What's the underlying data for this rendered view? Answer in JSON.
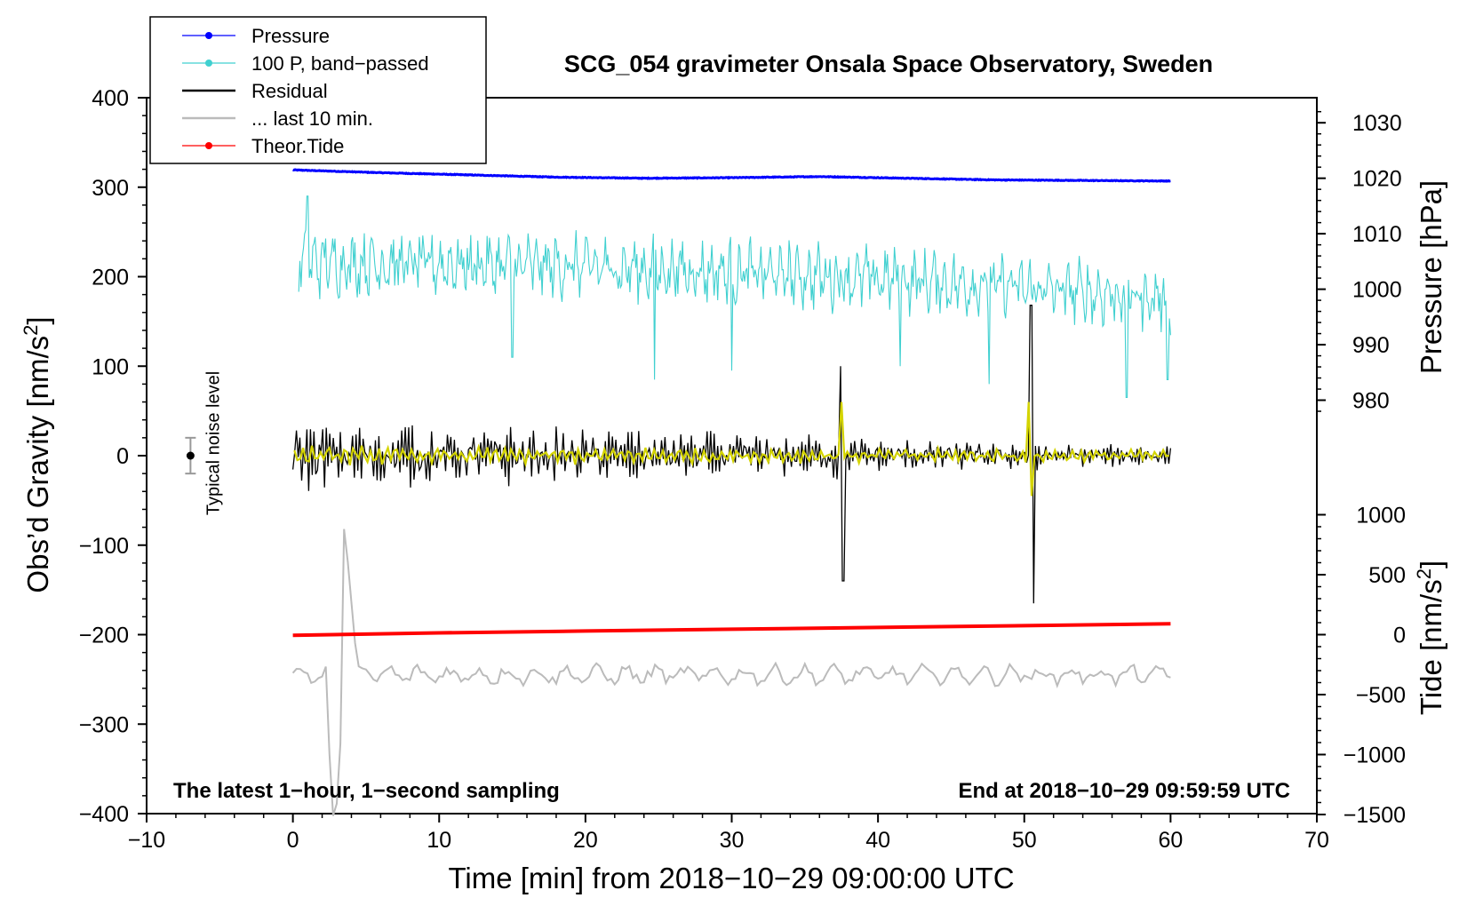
{
  "chart_data": {
    "type": "line",
    "title": "SCG_054 gravimeter Onsala Space Observatory, Sweden",
    "xlabel": "Time [min] from 2018−10−29 09:00:00 UTC",
    "ylabel": "Obs’d Gravity [nm/s²]",
    "ylabel_parts": {
      "base": "Obs’d Gravity [nm/s",
      "sup": "2",
      "close": "]"
    },
    "y2label_pressure": "Pressure [hPa]",
    "y2label_tide": "Tide [nm/s²]",
    "y2label_tide_parts": {
      "base": "Tide [nm/s",
      "sup": "2",
      "close": "]"
    },
    "xlim": [
      -10,
      70
    ],
    "ylim": [
      -400,
      400
    ],
    "xticks": [
      -10,
      0,
      10,
      20,
      30,
      40,
      50,
      60,
      70
    ],
    "xtick_labels": [
      "−10",
      "0",
      "10",
      "20",
      "30",
      "40",
      "50",
      "60",
      "70"
    ],
    "yticks": [
      -400,
      -300,
      -200,
      -100,
      0,
      100,
      200,
      300,
      400
    ],
    "ytick_labels": [
      "−400",
      "−300",
      "−200",
      "−100",
      "0",
      "100",
      "200",
      "300",
      "400"
    ],
    "pressure_axis": {
      "ticks": [
        980,
        990,
        1000,
        1010,
        1020,
        1030
      ],
      "tick_labels": [
        "980",
        "990",
        "1000",
        "1010",
        "1020",
        "1030"
      ],
      "gravity_at_1000hPa": 186,
      "gravity_per_hPa": 6.2
    },
    "tide_axis": {
      "ticks": [
        -1500,
        -1000,
        -500,
        0,
        500,
        1000
      ],
      "tick_labels": [
        "−1500",
        "−1000",
        "−500",
        "0",
        "500",
        "1000"
      ],
      "gravity_at_0": -200,
      "gravity_per_unit": 0.134
    },
    "legend": {
      "position": "top-left",
      "entries": [
        {
          "label": "Pressure",
          "color": "#0000ff",
          "marker": true
        },
        {
          "label": "100 P, band−passed",
          "color": "#40d0d0",
          "marker": true
        },
        {
          "label": "Residual",
          "color": "#000000",
          "marker": false
        },
        {
          "label": "... last 10 min.",
          "color": "#bbbbbb",
          "marker": false
        },
        {
          "label": "Theor.Tide",
          "color": "#ff0000",
          "marker": true
        }
      ]
    },
    "series": [
      {
        "name": "Pressure",
        "color": "#0000ff",
        "x_range": [
          0,
          60
        ],
        "values_hPa": [
          1021.5,
          1021.0,
          1020.6,
          1020.2,
          1020.0,
          1020.1,
          1020.3,
          1020.0,
          1019.7,
          1019.6,
          1019.5
        ]
      },
      {
        "name": "100 P, band−passed",
        "color": "#40d0d0",
        "x_range": [
          0,
          60
        ],
        "center": 215,
        "end_center": 175,
        "amplitude": 30,
        "spikes": [
          [
            1,
            290
          ],
          [
            15,
            110
          ],
          [
            24.7,
            85
          ],
          [
            30,
            95
          ],
          [
            41.5,
            100
          ],
          [
            47.6,
            80
          ],
          [
            57,
            65
          ],
          [
            59.8,
            85
          ]
        ]
      },
      {
        "name": "Residual",
        "color": "#000000",
        "x_range": [
          0,
          60
        ],
        "center": 0,
        "amplitude_start": 40,
        "amplitude_end": 10,
        "events": [
          {
            "t": 37.6,
            "max": 100,
            "min": -140
          },
          {
            "t": 50.6,
            "max": 168,
            "min": -165
          }
        ]
      },
      {
        "name": "Residual smoothed",
        "color": "#d4d400",
        "x_range": [
          0,
          60
        ],
        "center": 0,
        "events": [
          {
            "t": 37.6,
            "max": 60,
            "min": -50
          },
          {
            "t": 50.6,
            "max": 60,
            "min": -45
          }
        ]
      },
      {
        "name": "... last 10 min.",
        "color": "#bbbbbb",
        "x_range": [
          0,
          60
        ],
        "center": -245,
        "amplitude": 12,
        "event": {
          "t": 3.0,
          "max": -82,
          "min": -410
        }
      },
      {
        "name": "Theor.Tide",
        "color": "#ff0000",
        "x": [
          0,
          10,
          20,
          30,
          40,
          50,
          60
        ],
        "values_nms2": [
          -5,
          15,
          30,
          45,
          60,
          75,
          90
        ]
      }
    ],
    "noise_indicator": {
      "label": "Typical noise level",
      "x": -7,
      "y": 0,
      "error": 20
    },
    "annotations": {
      "bottom_left": "The latest 1−hour, 1−second sampling",
      "bottom_right": "End at 2018−10−29 09:59:59 UTC"
    }
  }
}
